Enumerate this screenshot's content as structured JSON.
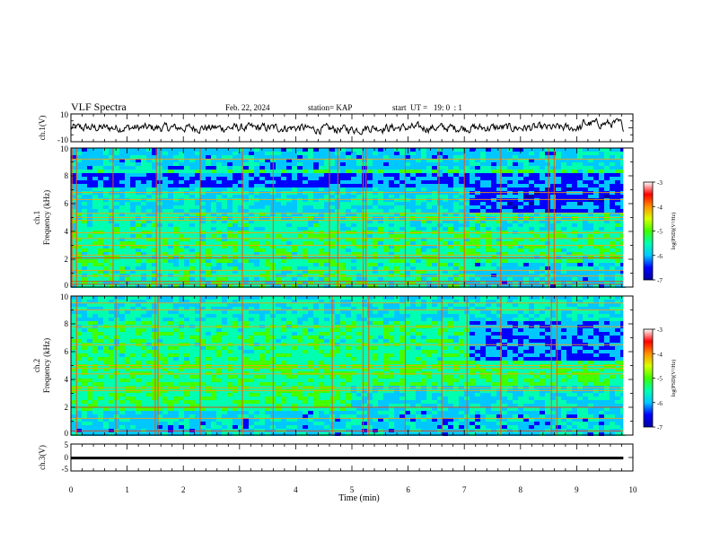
{
  "header": {
    "title": "VLF Spectra",
    "date": "Feb. 22, 2024",
    "station": "station= KAP",
    "start_ut": "start  UT =   19: 0  : 1"
  },
  "chart_data": [
    {
      "type": "line",
      "panel": "ch1-waveform",
      "ylabel": "ch.1(V)",
      "ylim": [
        -10,
        10
      ],
      "yticks": [
        "10",
        "-10"
      ],
      "xlim": [
        0,
        10
      ],
      "x_end": 9.83,
      "color": "#000000"
    },
    {
      "type": "heatmap",
      "panel": "ch1-spectrogram",
      "ylabel_channel": "ch.1",
      "ylabel": "Frequency  (kHz)",
      "ylim": [
        0,
        10
      ],
      "yticks": [
        "0",
        "2",
        "4",
        "6",
        "8",
        "10"
      ],
      "xlim": [
        0,
        10
      ],
      "x_end": 9.83,
      "colorbar": {
        "label": "log(PSD)(V²/Hz)",
        "range": [
          -7,
          -3
        ],
        "ticks": [
          "-3",
          "-4",
          "-5",
          "-6",
          "-7"
        ]
      },
      "colormap": [
        "#0000a0",
        "#0000ff",
        "#00c8ff",
        "#00ffb0",
        "#40ff00",
        "#d8ff00",
        "#ff9000",
        "#ff0000",
        "#ffffff"
      ],
      "lines_khz": [
        0.2,
        0.4,
        0.8,
        1.2,
        2.1,
        2.3,
        3.0,
        3.5,
        3.9,
        4.8,
        5.0,
        5.3,
        6.3,
        6.8,
        9.2
      ],
      "spikes_min": [
        0.02,
        0.1,
        0.75,
        1.52,
        1.58,
        2.3,
        3.05,
        3.6,
        4.6,
        4.75,
        5.2,
        5.25,
        5.95,
        6.55,
        7.0,
        7.65,
        8.5,
        8.6
      ],
      "transition_min": 7.0
    },
    {
      "type": "heatmap",
      "panel": "ch2-spectrogram",
      "ylabel_channel": "ch.2",
      "ylabel": "Frequency  (kHz)",
      "ylim": [
        0,
        10
      ],
      "yticks": [
        "0",
        "2",
        "4",
        "6",
        "8",
        "10"
      ],
      "xlim": [
        0,
        10
      ],
      "x_end": 9.83,
      "colorbar": {
        "label": "log(PSD)(V²/Hz)",
        "range": [
          -7,
          -3
        ],
        "ticks": [
          "-3",
          "-4",
          "-5",
          "-6",
          "-7"
        ]
      },
      "colormap": [
        "#0000a0",
        "#0000ff",
        "#00c8ff",
        "#00ffb0",
        "#40ff00",
        "#d8ff00",
        "#ff9000",
        "#ff0000",
        "#ffffff"
      ],
      "lines_khz": [
        0.3,
        1.2,
        2.0,
        3.2,
        3.4,
        4.4,
        4.8,
        5.0,
        6.5,
        7.8,
        9.0,
        9.5
      ],
      "spikes_min": [
        0.1,
        0.8,
        1.5,
        1.55,
        2.3,
        3.05,
        3.6,
        4.65,
        5.2,
        5.3,
        5.95,
        6.6,
        7.05,
        7.65,
        8.55,
        8.65
      ],
      "transition_min": 7.0
    },
    {
      "type": "line",
      "panel": "ch3-waveform",
      "ylabel": "ch.3(V)",
      "ylim": [
        -5,
        5
      ],
      "yticks": [
        "5",
        "0",
        "-5"
      ],
      "xlabel": "Time  (min)",
      "xlim": [
        0,
        10
      ],
      "xticks": [
        "0",
        "1",
        "2",
        "3",
        "4",
        "5",
        "6",
        "7",
        "8",
        "9",
        "10"
      ],
      "x_end": 9.83,
      "level": -0.2,
      "band": 0.5,
      "color": "#000000"
    }
  ]
}
